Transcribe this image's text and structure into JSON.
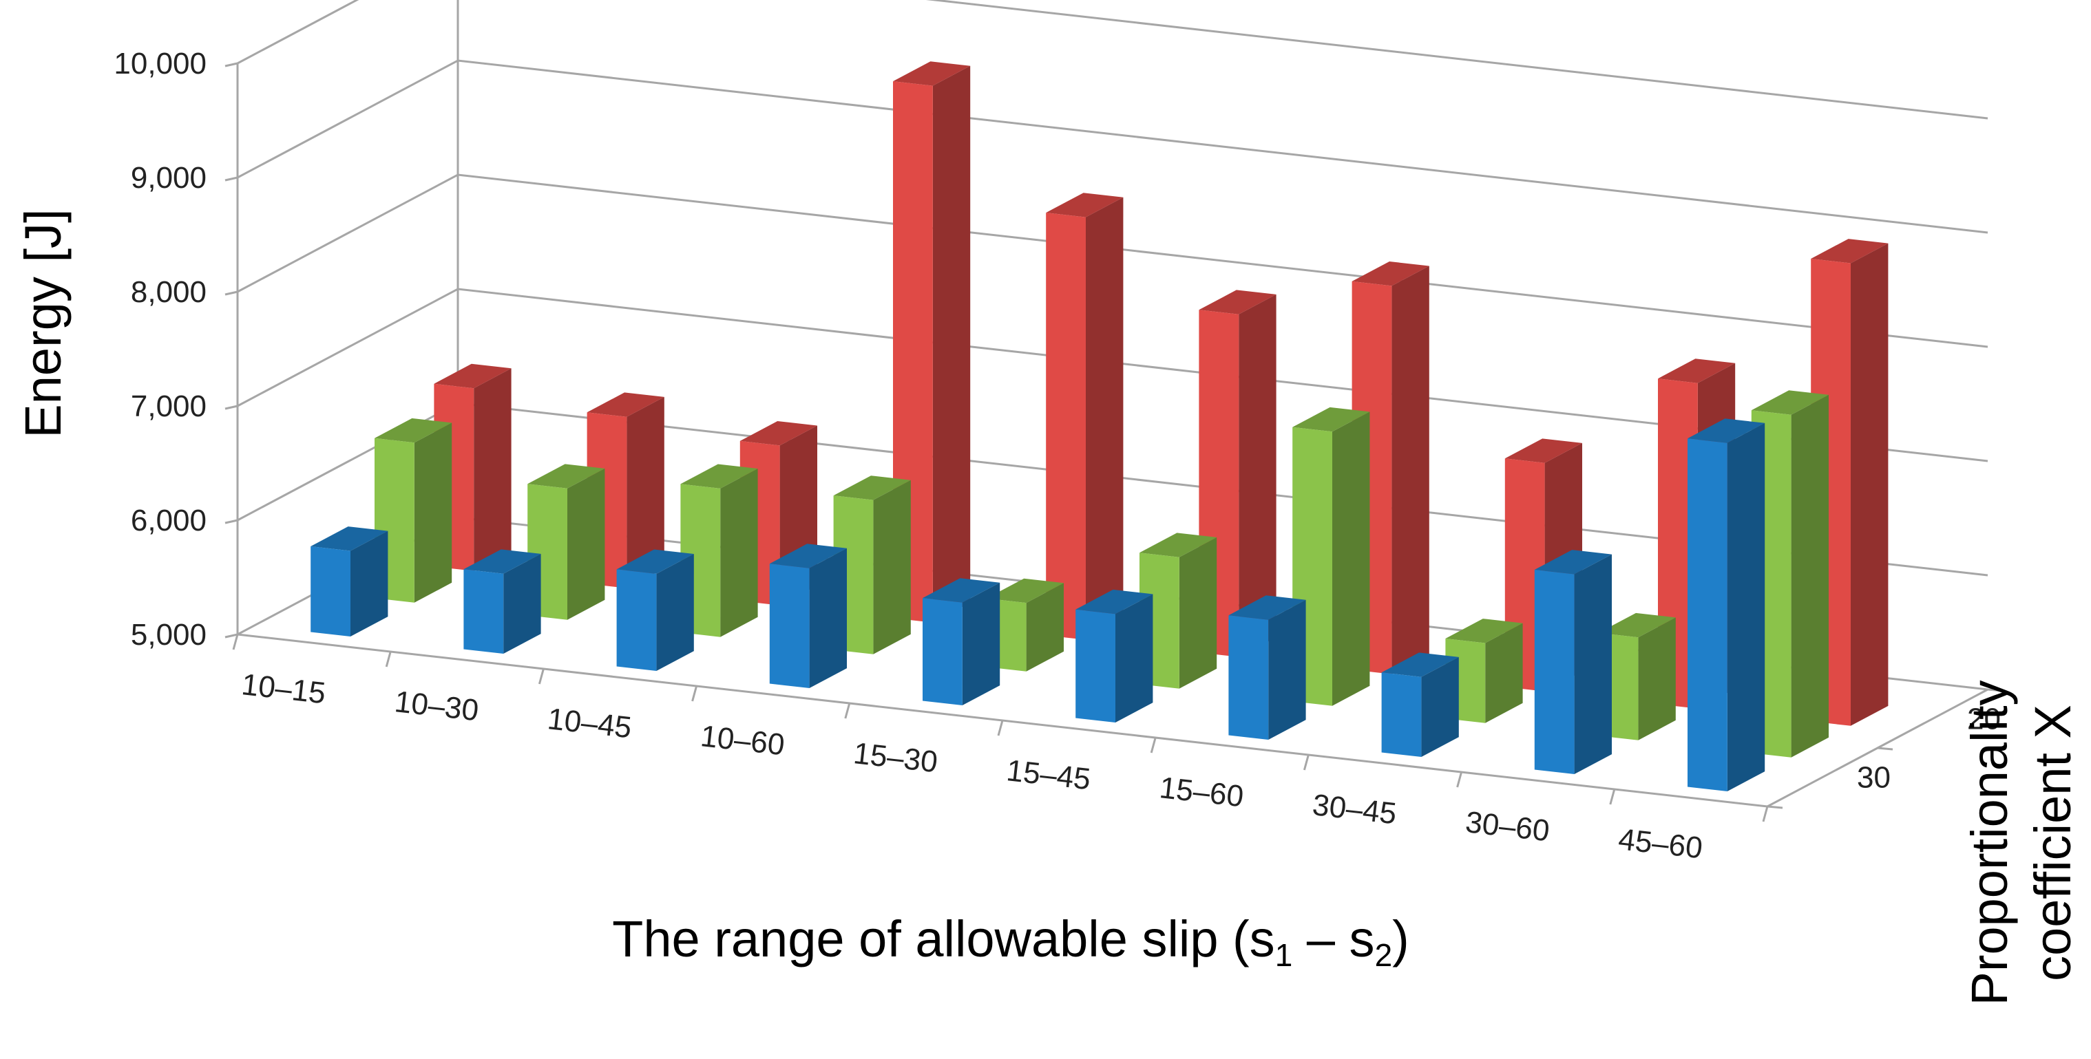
{
  "chart_data": {
    "type": "bar",
    "subtype": "3d-column",
    "title": "",
    "xlabel_parts": [
      "The range of allowable slip (s",
      "1",
      " – s",
      "2",
      ")"
    ],
    "ylabel": "Energy [J]",
    "zlabel": [
      "Proportionality",
      "coefficient X"
    ],
    "categories": [
      "10–15",
      "10–30",
      "10–45",
      "10–60",
      "15–30",
      "15–45",
      "15–60",
      "30–45",
      "30–60",
      "45–60"
    ],
    "yticks": [
      "5,000",
      "6,000",
      "7,000",
      "8,000",
      "9,000",
      "10,000"
    ],
    "ylim": [
      5000,
      10000
    ],
    "zticks": [
      "20",
      "30"
    ],
    "series": [
      {
        "name": "blue",
        "color": "#1f7fc9",
        "values": [
          5750,
          5700,
          5850,
          6050,
          5900,
          5950,
          6050,
          5700,
          6750,
          8050
        ]
      },
      {
        "name": "green",
        "color": "#8bc34a",
        "values": [
          6400,
          6150,
          6300,
          6350,
          5600,
          6150,
          7400,
          5700,
          5900,
          8000
        ]
      },
      {
        "name": "red",
        "color": "#e04a46",
        "values": [
          6600,
          6500,
          6400,
          9700,
          8700,
          8000,
          8400,
          7000,
          7850,
          9050
        ]
      }
    ],
    "colors": {
      "grid": "#a6a6a6",
      "text": "#222222"
    }
  }
}
